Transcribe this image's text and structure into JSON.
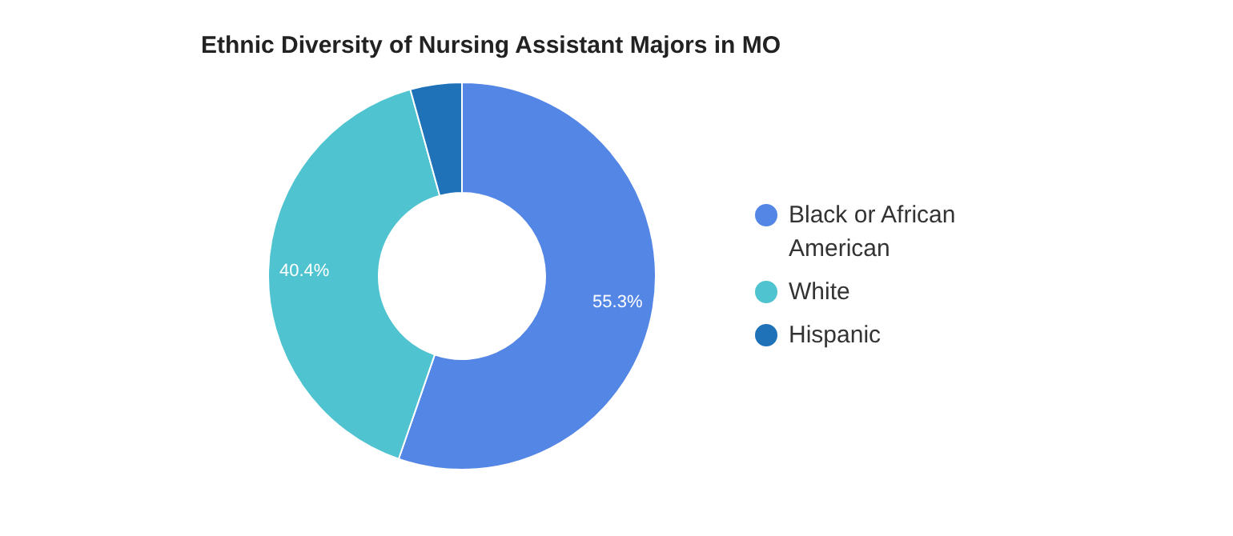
{
  "chart_data": {
    "type": "donut",
    "title": "Ethnic Diversity of Nursing Assistant Majors in MO",
    "categories": [
      "Black or African American",
      "White",
      "Hispanic"
    ],
    "values": [
      55.3,
      40.4,
      4.3
    ],
    "colors": [
      "#5486e6",
      "#4fc3cf",
      "#1f72b8"
    ],
    "value_labels": [
      "55.3%",
      "40.4%",
      null
    ],
    "legend": "right"
  }
}
